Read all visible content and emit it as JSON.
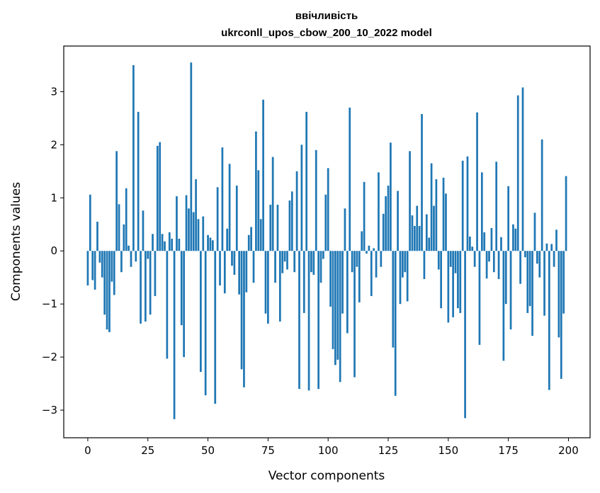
{
  "chart_data": {
    "type": "bar",
    "title": "ввічливість",
    "subtitle": "ukrconll_upos_cbow_200_10_2022 model",
    "xlabel": "Vector components",
    "ylabel": "Components values",
    "xlim": [
      -10,
      209
    ],
    "ylim": [
      -3.52,
      3.86
    ],
    "xticks": [
      0,
      25,
      50,
      75,
      100,
      125,
      150,
      175,
      200
    ],
    "xtick_labels": [
      "0",
      "25",
      "50",
      "75",
      "100",
      "125",
      "150",
      "175",
      "200"
    ],
    "yticks": [
      -3,
      -2,
      -1,
      0,
      1,
      2,
      3
    ],
    "ytick_labels": [
      "−3",
      "−2",
      "−1",
      "0",
      "1",
      "2",
      "3"
    ],
    "grid": false,
    "bar_color": "#1f77b4",
    "x": [
      0,
      1,
      2,
      3,
      4,
      5,
      6,
      7,
      8,
      9,
      10,
      11,
      12,
      13,
      14,
      15,
      16,
      17,
      18,
      19,
      20,
      21,
      22,
      23,
      24,
      25,
      26,
      27,
      28,
      29,
      30,
      31,
      32,
      33,
      34,
      35,
      36,
      37,
      38,
      39,
      40,
      41,
      42,
      43,
      44,
      45,
      46,
      47,
      48,
      49,
      50,
      51,
      52,
      53,
      54,
      55,
      56,
      57,
      58,
      59,
      60,
      61,
      62,
      63,
      64,
      65,
      66,
      67,
      68,
      69,
      70,
      71,
      72,
      73,
      74,
      75,
      76,
      77,
      78,
      79,
      80,
      81,
      82,
      83,
      84,
      85,
      86,
      87,
      88,
      89,
      90,
      91,
      92,
      93,
      94,
      95,
      96,
      97,
      98,
      99,
      100,
      101,
      102,
      103,
      104,
      105,
      106,
      107,
      108,
      109,
      110,
      111,
      112,
      113,
      114,
      115,
      116,
      117,
      118,
      119,
      120,
      121,
      122,
      123,
      124,
      125,
      126,
      127,
      128,
      129,
      130,
      131,
      132,
      133,
      134,
      135,
      136,
      137,
      138,
      139,
      140,
      141,
      142,
      143,
      144,
      145,
      146,
      147,
      148,
      149,
      150,
      151,
      152,
      153,
      154,
      155,
      156,
      157,
      158,
      159,
      160,
      161,
      162,
      163,
      164,
      165,
      166,
      167,
      168,
      169,
      170,
      171,
      172,
      173,
      174,
      175,
      176,
      177,
      178,
      179,
      180,
      181,
      182,
      183,
      184,
      185,
      186,
      187,
      188,
      189,
      190,
      191,
      192,
      193,
      194,
      195,
      196,
      197,
      198,
      199
    ],
    "values": [
      -0.65,
      1.06,
      -0.55,
      -0.73,
      0.55,
      -0.22,
      -0.5,
      -1.2,
      -1.48,
      -1.53,
      -0.58,
      -0.83,
      1.88,
      0.88,
      -0.4,
      0.5,
      1.18,
      0.1,
      -0.3,
      3.5,
      -0.2,
      2.62,
      -1.37,
      0.76,
      -1.33,
      -0.15,
      -1.2,
      0.32,
      -0.85,
      1.98,
      2.05,
      0.32,
      0.18,
      -2.03,
      0.35,
      0.23,
      -3.17,
      1.03,
      0.23,
      -1.4,
      -2.0,
      1.05,
      0.8,
      3.55,
      0.73,
      1.35,
      0.6,
      -2.28,
      0.65,
      -2.72,
      0.3,
      0.25,
      0.2,
      -2.88,
      1.2,
      -0.65,
      1.95,
      -0.8,
      0.42,
      1.64,
      -0.28,
      -0.45,
      1.23,
      -0.82,
      -2.23,
      -2.57,
      -0.78,
      0.3,
      0.45,
      -0.6,
      2.25,
      1.52,
      0.6,
      2.85,
      -1.18,
      -1.37,
      0.87,
      1.77,
      -0.6,
      0.87,
      -1.33,
      -0.42,
      -0.2,
      -0.35,
      0.95,
      1.12,
      -0.4,
      1.5,
      -2.6,
      2.0,
      -1.17,
      2.62,
      -2.63,
      -0.4,
      -0.45,
      1.9,
      -2.6,
      -0.6,
      -0.15,
      1.06,
      1.56,
      -1.05,
      -1.85,
      -2.15,
      -2.05,
      -2.47,
      -1.18,
      0.8,
      -1.55,
      2.7,
      -0.4,
      -2.38,
      -0.3,
      -0.97,
      0.37,
      1.3,
      -0.05,
      0.1,
      -0.85,
      0.05,
      -0.5,
      1.48,
      -0.3,
      0.7,
      1.03,
      1.23,
      2.04,
      -1.82,
      -2.73,
      1.13,
      -1.0,
      -0.5,
      -0.4,
      -0.95,
      1.88,
      0.67,
      0.47,
      0.85,
      0.47,
      2.58,
      -0.53,
      0.69,
      0.25,
      1.65,
      0.85,
      1.35,
      -0.35,
      -1.08,
      1.38,
      1.08,
      -1.35,
      -0.3,
      -1.25,
      -0.42,
      -1.08,
      -1.17,
      1.7,
      -3.15,
      1.78,
      0.27,
      0.08,
      -0.3,
      2.61,
      -1.77,
      1.48,
      0.35,
      -0.52,
      -0.2,
      0.43,
      -0.4,
      1.68,
      -0.53,
      0.26,
      -2.07,
      -1.0,
      1.22,
      -1.48,
      0.5,
      0.42,
      2.93,
      -0.62,
      3.08,
      -0.12,
      -1.17,
      -1.04,
      -1.6,
      0.72,
      -0.24,
      -0.5,
      2.1,
      -1.22,
      0.14,
      -2.62,
      0.13,
      -0.3,
      0.4,
      -1.63,
      -2.41,
      -1.18,
      1.41
    ]
  }
}
